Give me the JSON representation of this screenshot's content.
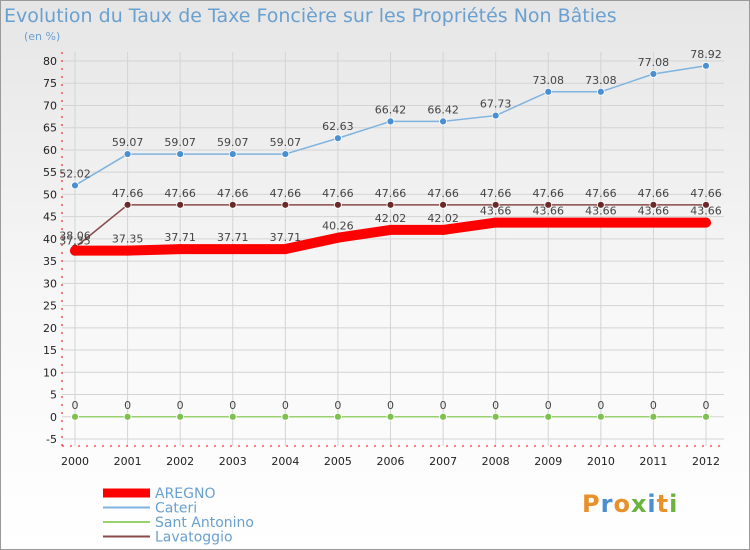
{
  "chart_data": {
    "type": "line",
    "title": "Evolution du Taux de Taxe Foncière sur les Propriétés Non Bâties",
    "subtitle": "(en %)",
    "ylim": [
      -5,
      80
    ],
    "yticks": [
      -5,
      0,
      5,
      10,
      15,
      20,
      25,
      30,
      35,
      40,
      45,
      50,
      55,
      60,
      65,
      70,
      75,
      80
    ],
    "x": [
      "2000",
      "2001",
      "2002",
      "2003",
      "2004",
      "2005",
      "2006",
      "2007",
      "2008",
      "2009",
      "2010",
      "2011",
      "2012"
    ],
    "grid": true,
    "legend_position": "bottom-left",
    "series": [
      {
        "name": "AREGNO",
        "color": "#ff0000",
        "values": [
          37.35,
          37.35,
          37.71,
          37.71,
          37.71,
          40.26,
          42.02,
          42.02,
          43.66,
          43.66,
          43.66,
          43.66,
          43.66
        ],
        "labels": [
          "37.35",
          "37.35",
          "37.71",
          "37.71",
          "37.71",
          "40.26",
          "42.02",
          "42.02",
          "43.66",
          "43.66",
          "43.66",
          "43.66",
          "43.66"
        ]
      },
      {
        "name": "Cateri",
        "color": "#7fb3e0",
        "values": [
          52.02,
          59.07,
          59.07,
          59.07,
          59.07,
          62.63,
          66.42,
          66.42,
          67.73,
          73.08,
          73.08,
          77.08,
          78.92
        ],
        "labels": [
          "52.02",
          "59.07",
          "59.07",
          "59.07",
          "59.07",
          "62.63",
          "66.42",
          "66.42",
          "67.73",
          "73.08",
          "73.08",
          "77.08",
          "78.92"
        ]
      },
      {
        "name": "Sant Antonino",
        "color": "#99d16e",
        "values": [
          0,
          0,
          0,
          0,
          0,
          0,
          0,
          0,
          0,
          0,
          0,
          0,
          0
        ],
        "labels": [
          "0",
          "0",
          "0",
          "0",
          "0",
          "0",
          "0",
          "0",
          "0",
          "0",
          "0",
          "0",
          "0"
        ]
      },
      {
        "name": "Lavatoggio",
        "color": "#8b4a4a",
        "values": [
          38.06,
          47.66,
          47.66,
          47.66,
          47.66,
          47.66,
          47.66,
          47.66,
          47.66,
          47.66,
          47.66,
          47.66,
          47.66
        ],
        "labels": [
          "38.06",
          "47.66",
          "47.66",
          "47.66",
          "47.66",
          "47.66",
          "47.66",
          "47.66",
          "47.66",
          "47.66",
          "47.66",
          "47.66",
          "47.66"
        ]
      }
    ]
  },
  "logo": {
    "text": "Proxiti"
  }
}
